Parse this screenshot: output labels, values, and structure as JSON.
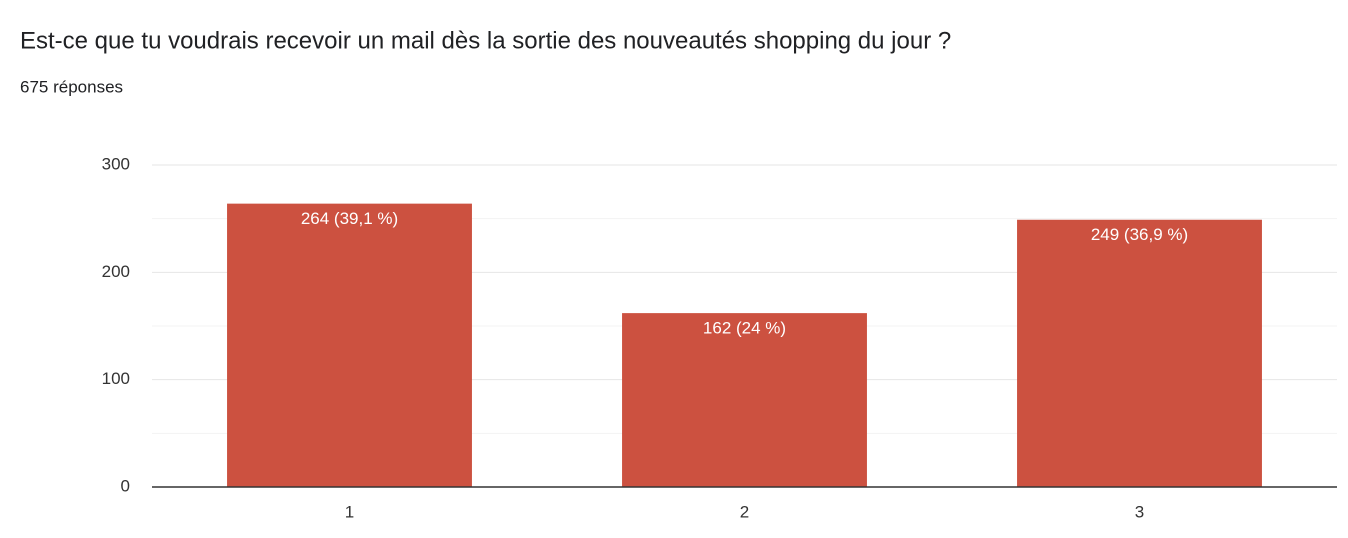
{
  "chart_data": {
    "type": "bar",
    "title": "Est-ce que tu voudrais recevoir un mail dès la sortie des nouveautés shopping du jour ?",
    "subtitle": "675 réponses",
    "categories": [
      "1",
      "2",
      "3"
    ],
    "values": [
      264,
      162,
      249
    ],
    "value_labels": [
      "264 (39,1 %)",
      "162 (24 %)",
      "249 (36,9 %)"
    ],
    "color": "#cc5140",
    "ylim": [
      0,
      300
    ],
    "yticks": [
      0,
      100,
      200,
      300
    ],
    "minor_yticks": [
      50,
      150,
      250
    ],
    "grid": true
  }
}
